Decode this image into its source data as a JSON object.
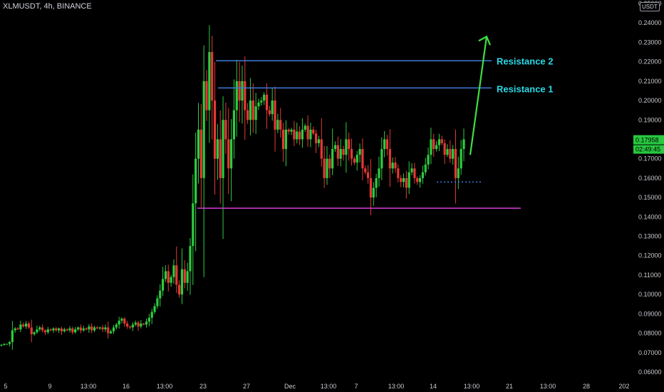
{
  "header": {
    "symbol_line": "XLMUSDT, 4h, BINANCE",
    "currency": "USDT"
  },
  "chart_data": {
    "type": "candlestick",
    "ylim": [
      0.06,
      0.25
    ],
    "y_ticks": [
      "0.25000",
      "0.24000",
      "0.23000",
      "0.22000",
      "0.21000",
      "0.20000",
      "0.19000",
      "0.18000",
      "0.17000",
      "0.16000",
      "0.15000",
      "0.14000",
      "0.13000",
      "0.12000",
      "0.11000",
      "0.10000",
      "0.09000",
      "0.08000",
      "0.07000",
      "0.06000"
    ],
    "x_ticks": [
      "5",
      "9",
      "13:00",
      "16",
      "13:00",
      "23",
      "27",
      "Dec",
      "13:00",
      "7",
      "13:00",
      "14",
      "13:00",
      "21",
      "13:00",
      "28",
      "202"
    ],
    "price": [
      0.074,
      0.0745,
      0.0745,
      0.0755,
      0.0815,
      0.0825,
      0.082,
      0.0845,
      0.0835,
      0.085,
      0.083,
      0.0795,
      0.0805,
      0.082,
      0.083,
      0.0815,
      0.0805,
      0.082,
      0.0815,
      0.0825,
      0.0815,
      0.0825,
      0.081,
      0.082,
      0.0815,
      0.0825,
      0.0805,
      0.082,
      0.083,
      0.0815,
      0.0825,
      0.082,
      0.0835,
      0.0815,
      0.083,
      0.0825,
      0.083,
      0.082,
      0.083,
      0.08,
      0.081,
      0.083,
      0.0845,
      0.0865,
      0.0875,
      0.085,
      0.0835,
      0.083,
      0.0845,
      0.0855,
      0.0835,
      0.085,
      0.0845,
      0.086,
      0.088,
      0.091,
      0.094,
      0.098,
      0.102,
      0.108,
      0.112,
      0.106,
      0.109,
      0.115,
      0.105,
      0.1,
      0.113,
      0.106,
      0.112,
      0.125,
      0.147,
      0.17,
      0.185,
      0.16,
      0.21,
      0.195,
      0.225,
      0.2,
      0.17,
      0.18,
      0.16,
      0.19,
      0.18,
      0.165,
      0.18,
      0.195,
      0.21,
      0.2,
      0.21,
      0.195,
      0.19,
      0.2,
      0.19,
      0.197,
      0.199,
      0.2,
      0.203,
      0.195,
      0.193,
      0.2,
      0.185,
      0.19,
      0.185,
      0.175,
      0.185,
      0.184,
      0.185,
      0.18,
      0.184,
      0.18,
      0.185,
      0.187,
      0.18,
      0.185,
      0.183,
      0.178,
      0.18,
      0.17,
      0.16,
      0.17,
      0.165,
      0.175,
      0.177,
      0.17,
      0.175,
      0.172,
      0.18,
      0.175,
      0.17,
      0.168,
      0.172,
      0.175,
      0.165,
      0.163,
      0.16,
      0.15,
      0.155,
      0.16,
      0.165,
      0.175,
      0.18,
      0.175,
      0.165,
      0.168,
      0.165,
      0.16,
      0.158,
      0.16,
      0.155,
      0.163,
      0.165,
      0.16,
      0.158,
      0.16,
      0.163,
      0.167,
      0.172,
      0.18,
      0.175,
      0.177,
      0.18,
      0.178,
      0.172,
      0.175,
      0.17,
      0.175,
      0.16,
      0.165,
      0.175,
      0.18
    ],
    "annotations": {
      "resistance_2": {
        "label": "Resistance 2",
        "value": 0.2205
      },
      "resistance_1": {
        "label": "Resistance 1",
        "value": 0.2065
      },
      "support": {
        "value": 0.1445
      },
      "dotted_level": {
        "value": 0.158
      },
      "projection_arrow": {
        "from": 0.172,
        "to": 0.233
      }
    },
    "last_price": {
      "label": "0.17958",
      "value": 0.17958
    },
    "countdown": {
      "label": "02:49:45"
    },
    "colors": {
      "up": "#26a69a",
      "down": "#ef5350",
      "candle_up": "#2ecc40",
      "candle_down": "#e53935",
      "resistance": "#3d7bd9",
      "support": "#d63cd6",
      "arrow": "#3ee03e",
      "label": "#29d9e6",
      "tag": "#28c840"
    }
  }
}
